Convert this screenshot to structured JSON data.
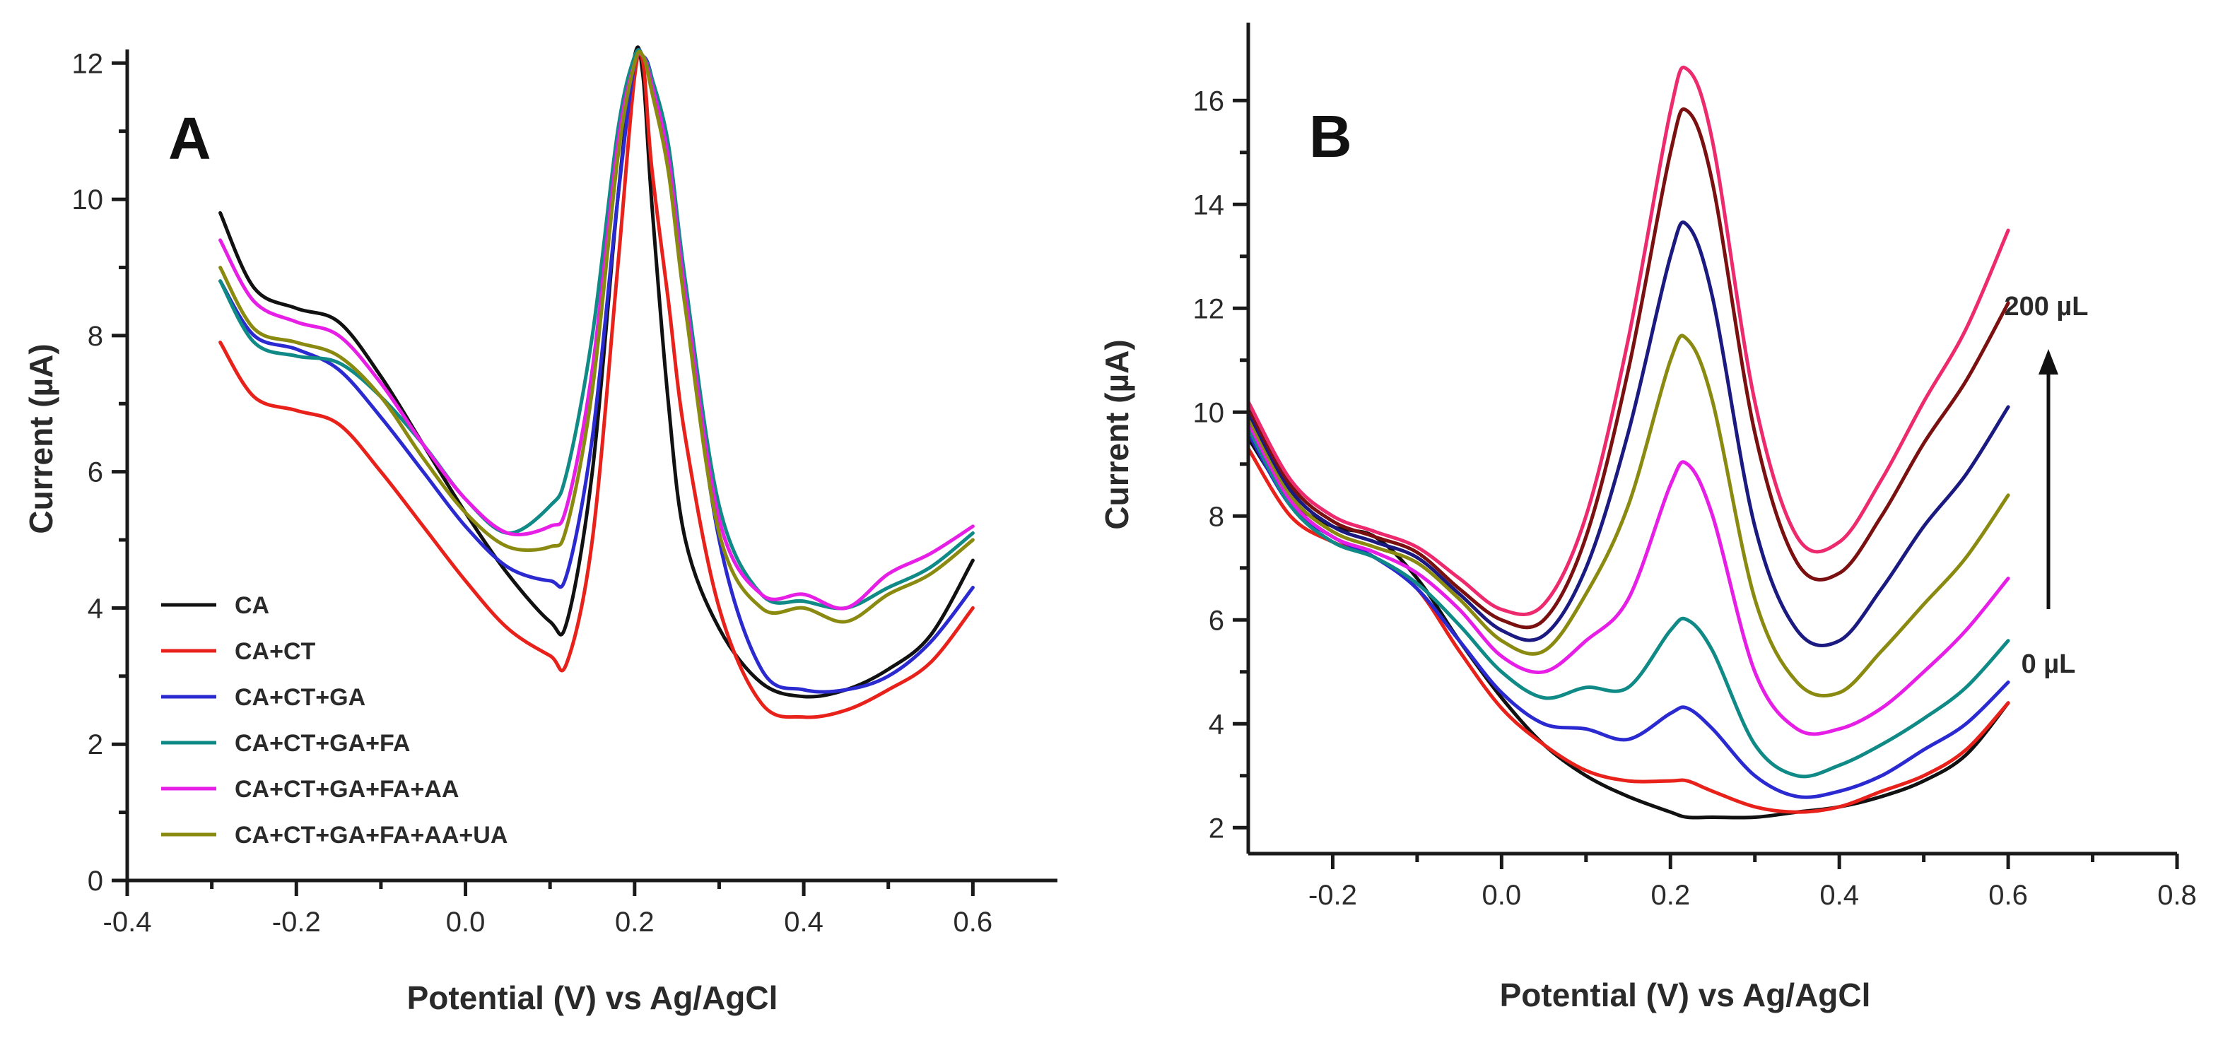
{
  "chart_data": [
    {
      "type": "line",
      "panel_label": "A",
      "xlabel": "Potential (V) vs Ag/AgCl",
      "ylabel": "Current (µA)",
      "xlim": [
        -0.4,
        0.7
      ],
      "ylim": [
        0,
        12.2
      ],
      "xticks": [
        -0.4,
        -0.2,
        0.0,
        0.2,
        0.4,
        0.6
      ],
      "xtick_labels": [
        "-0.4",
        "-0.2",
        "0.0",
        "0.2",
        "0.4",
        "0.6"
      ],
      "yticks": [
        0,
        2,
        4,
        6,
        8,
        10,
        12
      ],
      "ytick_labels": [
        "0",
        "2",
        "4",
        "6",
        "8",
        "10",
        "12"
      ],
      "legend": "bottom-left",
      "series": [
        {
          "name": "CA",
          "color": "#111111",
          "x": [
            -0.29,
            -0.25,
            -0.2,
            -0.15,
            -0.1,
            -0.05,
            0.0,
            0.05,
            0.1,
            0.12,
            0.15,
            0.18,
            0.2,
            0.21,
            0.22,
            0.24,
            0.26,
            0.3,
            0.35,
            0.4,
            0.45,
            0.5,
            0.55,
            0.6
          ],
          "y": [
            9.8,
            8.7,
            8.4,
            8.2,
            7.4,
            6.4,
            5.4,
            4.5,
            3.8,
            3.8,
            6.0,
            10.0,
            12.1,
            11.8,
            10.0,
            7.0,
            5.0,
            3.7,
            2.9,
            2.7,
            2.8,
            3.1,
            3.6,
            4.7
          ]
        },
        {
          "name": "CA+CT",
          "color": "#e8211b",
          "x": [
            -0.29,
            -0.25,
            -0.2,
            -0.15,
            -0.1,
            -0.05,
            0.0,
            0.05,
            0.1,
            0.12,
            0.15,
            0.18,
            0.2,
            0.21,
            0.22,
            0.24,
            0.26,
            0.3,
            0.35,
            0.4,
            0.45,
            0.5,
            0.55,
            0.6
          ],
          "y": [
            7.9,
            7.1,
            6.9,
            6.7,
            6.0,
            5.2,
            4.4,
            3.7,
            3.3,
            3.2,
            5.0,
            9.0,
            11.8,
            12.0,
            10.5,
            8.5,
            6.5,
            4.0,
            2.6,
            2.4,
            2.5,
            2.8,
            3.2,
            4.0
          ]
        },
        {
          "name": "CA+CT+GA",
          "color": "#2a2ad0",
          "x": [
            -0.29,
            -0.25,
            -0.2,
            -0.15,
            -0.1,
            -0.05,
            0.0,
            0.05,
            0.1,
            0.12,
            0.15,
            0.18,
            0.2,
            0.21,
            0.22,
            0.24,
            0.26,
            0.3,
            0.35,
            0.4,
            0.45,
            0.5,
            0.55,
            0.6
          ],
          "y": [
            8.8,
            8.0,
            7.8,
            7.5,
            6.8,
            6.0,
            5.2,
            4.6,
            4.4,
            4.5,
            6.5,
            10.0,
            12.0,
            12.1,
            11.8,
            10.5,
            8.5,
            5.0,
            3.1,
            2.8,
            2.8,
            3.0,
            3.5,
            4.3
          ]
        },
        {
          "name": "CA+CT+GA+FA",
          "color": "#0f8a86",
          "x": [
            -0.29,
            -0.25,
            -0.2,
            -0.15,
            -0.1,
            -0.05,
            0.0,
            0.05,
            0.1,
            0.12,
            0.15,
            0.18,
            0.2,
            0.21,
            0.22,
            0.24,
            0.26,
            0.3,
            0.35,
            0.4,
            0.45,
            0.5,
            0.55,
            0.6
          ],
          "y": [
            8.8,
            7.9,
            7.7,
            7.6,
            7.1,
            6.4,
            5.6,
            5.1,
            5.5,
            6.0,
            8.0,
            11.0,
            12.1,
            12.1,
            11.8,
            10.8,
            8.8,
            5.5,
            4.2,
            4.1,
            4.0,
            4.3,
            4.6,
            5.1
          ]
        },
        {
          "name": "CA+CT+GA+FA+AA",
          "color": "#e61ee6",
          "x": [
            -0.29,
            -0.25,
            -0.2,
            -0.15,
            -0.1,
            -0.05,
            0.0,
            0.05,
            0.1,
            0.12,
            0.15,
            0.18,
            0.2,
            0.21,
            0.22,
            0.24,
            0.26,
            0.3,
            0.35,
            0.4,
            0.45,
            0.5,
            0.55,
            0.6
          ],
          "y": [
            9.4,
            8.5,
            8.2,
            8.0,
            7.3,
            6.4,
            5.6,
            5.1,
            5.2,
            5.5,
            7.5,
            10.8,
            12.0,
            12.1,
            11.7,
            10.6,
            8.6,
            5.3,
            4.2,
            4.2,
            4.0,
            4.5,
            4.8,
            5.2
          ]
        },
        {
          "name": "CA+CT+GA+FA+AA+UA",
          "color": "#8a8a10",
          "x": [
            -0.29,
            -0.25,
            -0.2,
            -0.15,
            -0.1,
            -0.05,
            0.0,
            0.05,
            0.1,
            0.12,
            0.15,
            0.18,
            0.2,
            0.21,
            0.22,
            0.24,
            0.26,
            0.3,
            0.35,
            0.4,
            0.45,
            0.5,
            0.55,
            0.6
          ],
          "y": [
            9.0,
            8.1,
            7.9,
            7.7,
            7.1,
            6.2,
            5.4,
            4.9,
            4.9,
            5.2,
            7.2,
            10.6,
            12.0,
            12.1,
            11.6,
            10.4,
            8.4,
            5.1,
            4.0,
            4.0,
            3.8,
            4.2,
            4.5,
            5.0
          ]
        }
      ]
    },
    {
      "type": "line",
      "panel_label": "B",
      "xlabel": "Potential (V) vs Ag/AgCl",
      "ylabel": "Current (µA)",
      "xlim": [
        -0.3,
        0.8
      ],
      "ylim": [
        1.5,
        17.5
      ],
      "xticks": [
        -0.2,
        0.0,
        0.2,
        0.4,
        0.6,
        0.8
      ],
      "xtick_labels": [
        "-0.2",
        "0.0",
        "0.2",
        "0.4",
        "0.6",
        "0.8"
      ],
      "yticks": [
        2,
        4,
        6,
        8,
        10,
        12,
        14,
        16
      ],
      "ytick_labels": [
        "2",
        "4",
        "6",
        "8",
        "10",
        "12",
        "14",
        "16"
      ],
      "annotations": {
        "top": "200 µL",
        "bottom": "0 µL"
      },
      "series": [
        {
          "name": "0 µL",
          "color": "#111111",
          "x": [
            -0.3,
            -0.25,
            -0.2,
            -0.15,
            -0.1,
            -0.05,
            0.0,
            0.05,
            0.1,
            0.15,
            0.2,
            0.22,
            0.25,
            0.3,
            0.35,
            0.4,
            0.45,
            0.5,
            0.55,
            0.6
          ],
          "y": [
            9.5,
            8.3,
            7.8,
            7.6,
            6.8,
            5.6,
            4.5,
            3.6,
            3.0,
            2.6,
            2.3,
            2.2,
            2.2,
            2.2,
            2.3,
            2.4,
            2.6,
            2.9,
            3.4,
            4.4
          ]
        },
        {
          "name": "",
          "color": "#e8211b",
          "x": [
            -0.3,
            -0.25,
            -0.2,
            -0.15,
            -0.1,
            -0.05,
            0.0,
            0.05,
            0.1,
            0.15,
            0.2,
            0.22,
            0.25,
            0.3,
            0.35,
            0.4,
            0.45,
            0.5,
            0.55,
            0.6
          ],
          "y": [
            9.3,
            8.0,
            7.5,
            7.2,
            6.6,
            5.4,
            4.3,
            3.6,
            3.1,
            2.9,
            2.9,
            2.9,
            2.7,
            2.4,
            2.3,
            2.4,
            2.7,
            3.0,
            3.5,
            4.4
          ]
        },
        {
          "name": "",
          "color": "#2a2ad0",
          "x": [
            -0.3,
            -0.25,
            -0.2,
            -0.15,
            -0.1,
            -0.05,
            0.0,
            0.05,
            0.1,
            0.15,
            0.2,
            0.22,
            0.25,
            0.3,
            0.35,
            0.4,
            0.45,
            0.5,
            0.55,
            0.6
          ],
          "y": [
            9.6,
            8.2,
            7.6,
            7.2,
            6.6,
            5.6,
            4.6,
            4.0,
            3.9,
            3.7,
            4.2,
            4.3,
            3.9,
            3.0,
            2.6,
            2.7,
            3.0,
            3.5,
            4.0,
            4.8
          ]
        },
        {
          "name": "",
          "color": "#0f8a86",
          "x": [
            -0.3,
            -0.25,
            -0.2,
            -0.15,
            -0.1,
            -0.05,
            0.0,
            0.05,
            0.1,
            0.15,
            0.2,
            0.22,
            0.25,
            0.3,
            0.35,
            0.4,
            0.45,
            0.5,
            0.55,
            0.6
          ],
          "y": [
            9.7,
            8.2,
            7.5,
            7.2,
            6.7,
            5.9,
            5.0,
            4.5,
            4.7,
            4.7,
            5.8,
            6.0,
            5.4,
            3.6,
            3.0,
            3.2,
            3.6,
            4.1,
            4.7,
            5.6
          ]
        },
        {
          "name": "",
          "color": "#e61ee6",
          "x": [
            -0.3,
            -0.25,
            -0.2,
            -0.15,
            -0.1,
            -0.05,
            0.0,
            0.05,
            0.1,
            0.15,
            0.2,
            0.22,
            0.25,
            0.3,
            0.35,
            0.4,
            0.45,
            0.5,
            0.55,
            0.6
          ],
          "y": [
            9.8,
            8.3,
            7.6,
            7.3,
            6.9,
            6.2,
            5.3,
            5.0,
            5.6,
            6.4,
            8.6,
            9.0,
            8.0,
            5.0,
            3.9,
            3.9,
            4.3,
            5.0,
            5.8,
            6.8
          ]
        },
        {
          "name": "",
          "color": "#8a8a10",
          "x": [
            -0.3,
            -0.25,
            -0.2,
            -0.15,
            -0.1,
            -0.05,
            0.0,
            0.05,
            0.1,
            0.15,
            0.2,
            0.22,
            0.25,
            0.3,
            0.35,
            0.4,
            0.45,
            0.5,
            0.55,
            0.6
          ],
          "y": [
            9.9,
            8.4,
            7.7,
            7.4,
            7.1,
            6.4,
            5.6,
            5.4,
            6.5,
            8.2,
            11.0,
            11.4,
            10.2,
            6.4,
            4.8,
            4.6,
            5.4,
            6.3,
            7.2,
            8.4
          ]
        },
        {
          "name": "",
          "color": "#1a1a80",
          "x": [
            -0.3,
            -0.25,
            -0.2,
            -0.15,
            -0.1,
            -0.05,
            0.0,
            0.05,
            0.1,
            0.15,
            0.2,
            0.22,
            0.25,
            0.3,
            0.35,
            0.4,
            0.45,
            0.5,
            0.55,
            0.6
          ],
          "y": [
            10.0,
            8.5,
            7.8,
            7.5,
            7.2,
            6.5,
            5.8,
            5.7,
            7.0,
            9.6,
            13.0,
            13.6,
            12.2,
            7.8,
            5.8,
            5.6,
            6.6,
            7.8,
            8.8,
            10.1
          ]
        },
        {
          "name": "",
          "color": "#7a1010",
          "x": [
            -0.3,
            -0.25,
            -0.2,
            -0.15,
            -0.1,
            -0.05,
            0.0,
            0.05,
            0.1,
            0.15,
            0.2,
            0.22,
            0.25,
            0.3,
            0.35,
            0.4,
            0.45,
            0.5,
            0.55,
            0.6
          ],
          "y": [
            10.1,
            8.6,
            7.9,
            7.6,
            7.3,
            6.6,
            6.0,
            6.0,
            7.6,
            10.8,
            15.0,
            15.8,
            14.4,
            9.6,
            7.1,
            6.9,
            8.0,
            9.4,
            10.6,
            12.1
          ]
        },
        {
          "name": "200 µL",
          "color": "#ee2a6e",
          "x": [
            -0.3,
            -0.25,
            -0.2,
            -0.15,
            -0.1,
            -0.05,
            0.0,
            0.05,
            0.1,
            0.15,
            0.2,
            0.22,
            0.25,
            0.3,
            0.35,
            0.4,
            0.45,
            0.5,
            0.55,
            0.6
          ],
          "y": [
            10.2,
            8.7,
            8.0,
            7.7,
            7.4,
            6.8,
            6.2,
            6.3,
            8.0,
            11.4,
            15.8,
            16.6,
            15.2,
            10.2,
            7.6,
            7.5,
            8.7,
            10.2,
            11.6,
            13.5
          ]
        }
      ]
    }
  ]
}
